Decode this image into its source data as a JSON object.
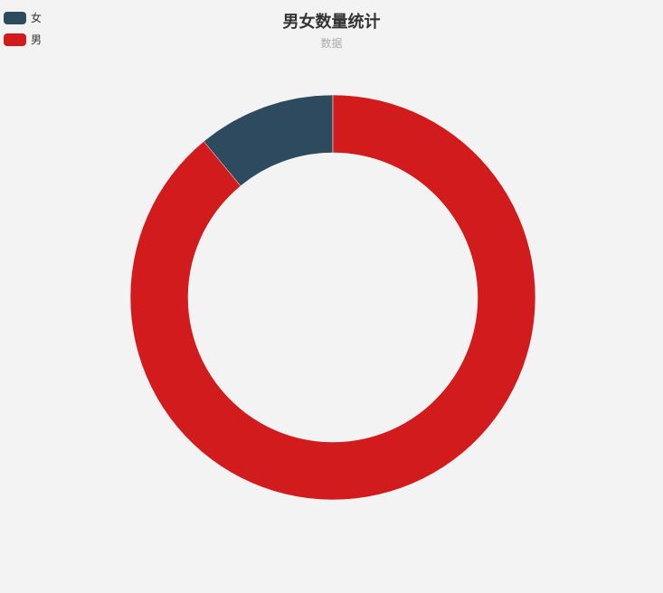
{
  "chart_data": {
    "type": "pie",
    "title": "男女数量统计",
    "subtitle": "数据",
    "legend_position": "top-left",
    "categories": [
      "女",
      "男"
    ],
    "values": [
      11,
      89
    ],
    "colors": [
      "#2d4a5e",
      "#d11b1d"
    ],
    "donut": true
  }
}
